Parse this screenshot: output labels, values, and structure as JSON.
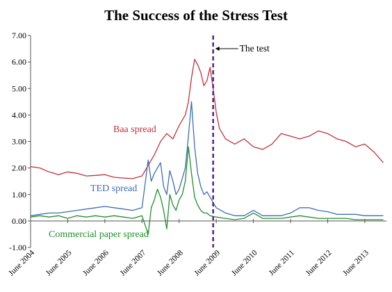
{
  "chart_data": {
    "type": "line",
    "title": "The Success of the Stress Test",
    "xlabel": "",
    "ylabel": "",
    "ylim": [
      -1.0,
      7.0
    ],
    "yticks": [
      "-1.00",
      "0.00",
      "1.00",
      "2.00",
      "3.00",
      "4.00",
      "5.00",
      "6.00",
      "7.00"
    ],
    "xrange": [
      "2004-06",
      "2014-01"
    ],
    "xticks": [
      "June 2004",
      "June 2005",
      "June 2006",
      "June 2007",
      "June 2008",
      "June 2009",
      "June 2010",
      "June 2011",
      "June 2012",
      "June 2013"
    ],
    "grid": false,
    "legend": "inline labels",
    "annotation": {
      "label": "The test",
      "x": "2009-05"
    },
    "colors": {
      "baa": "#c0323a",
      "ted": "#3d6db5",
      "cp": "#1f8f2a",
      "test_line": "#5b2a86"
    },
    "series": [
      {
        "name": "Baa spread",
        "x": [
          "2004-06",
          "2004-09",
          "2004-12",
          "2005-03",
          "2005-06",
          "2005-09",
          "2005-12",
          "2006-03",
          "2006-06",
          "2006-09",
          "2006-12",
          "2007-03",
          "2007-06",
          "2007-08",
          "2007-10",
          "2007-12",
          "2008-02",
          "2008-04",
          "2008-06",
          "2008-08",
          "2008-09",
          "2008-10",
          "2008-11",
          "2008-12",
          "2009-01",
          "2009-02",
          "2009-03",
          "2009-04",
          "2009-05",
          "2009-06",
          "2009-07",
          "2009-09",
          "2009-12",
          "2010-03",
          "2010-06",
          "2010-09",
          "2010-12",
          "2011-03",
          "2011-06",
          "2011-09",
          "2011-12",
          "2012-03",
          "2012-06",
          "2012-09",
          "2012-12",
          "2013-03",
          "2013-06",
          "2013-09",
          "2013-12"
        ],
        "y": [
          2.05,
          2.0,
          1.85,
          1.75,
          1.85,
          1.8,
          1.7,
          1.72,
          1.75,
          1.65,
          1.62,
          1.6,
          1.7,
          2.1,
          2.5,
          3.0,
          3.3,
          3.1,
          3.6,
          4.0,
          4.5,
          5.4,
          6.1,
          5.9,
          5.6,
          5.1,
          5.3,
          5.8,
          5.0,
          4.1,
          3.5,
          3.1,
          2.9,
          3.1,
          2.8,
          2.7,
          2.9,
          3.3,
          3.2,
          3.1,
          3.2,
          3.4,
          3.3,
          3.1,
          3.0,
          2.8,
          2.9,
          2.6,
          2.2
        ]
      },
      {
        "name": "TED spread",
        "x": [
          "2004-06",
          "2004-09",
          "2004-12",
          "2005-03",
          "2005-06",
          "2005-09",
          "2005-12",
          "2006-03",
          "2006-06",
          "2006-09",
          "2006-12",
          "2007-03",
          "2007-06",
          "2007-08",
          "2007-09",
          "2007-10",
          "2007-11",
          "2007-12",
          "2008-01",
          "2008-02",
          "2008-03",
          "2008-04",
          "2008-05",
          "2008-06",
          "2008-07",
          "2008-08",
          "2008-09",
          "2008-10",
          "2008-11",
          "2008-12",
          "2009-01",
          "2009-02",
          "2009-03",
          "2009-04",
          "2009-06",
          "2009-09",
          "2009-12",
          "2010-03",
          "2010-06",
          "2010-09",
          "2010-12",
          "2011-03",
          "2011-06",
          "2011-09",
          "2011-12",
          "2012-03",
          "2012-06",
          "2012-09",
          "2012-12",
          "2013-03",
          "2013-06",
          "2013-09",
          "2013-12"
        ],
        "y": [
          0.2,
          0.25,
          0.3,
          0.3,
          0.35,
          0.4,
          0.45,
          0.5,
          0.55,
          0.5,
          0.45,
          0.4,
          0.5,
          2.3,
          1.5,
          1.8,
          2.0,
          2.2,
          1.3,
          1.0,
          1.9,
          1.5,
          1.0,
          1.2,
          1.6,
          2.0,
          3.2,
          4.5,
          2.8,
          1.8,
          1.3,
          1.0,
          1.1,
          0.9,
          0.5,
          0.3,
          0.2,
          0.2,
          0.4,
          0.2,
          0.2,
          0.2,
          0.3,
          0.5,
          0.5,
          0.4,
          0.35,
          0.25,
          0.25,
          0.25,
          0.2,
          0.2,
          0.2
        ]
      },
      {
        "name": "Commercial paper spread",
        "x": [
          "2004-06",
          "2004-09",
          "2004-12",
          "2005-03",
          "2005-06",
          "2005-09",
          "2005-12",
          "2006-03",
          "2006-06",
          "2006-09",
          "2006-12",
          "2007-03",
          "2007-06",
          "2007-08",
          "2007-09",
          "2007-10",
          "2007-11",
          "2007-12",
          "2008-01",
          "2008-02",
          "2008-03",
          "2008-04",
          "2008-05",
          "2008-06",
          "2008-07",
          "2008-08",
          "2008-09",
          "2008-10",
          "2008-11",
          "2008-12",
          "2009-01",
          "2009-02",
          "2009-03",
          "2009-04",
          "2009-06",
          "2009-09",
          "2009-12",
          "2010-03",
          "2010-06",
          "2010-09",
          "2010-12",
          "2011-03",
          "2011-06",
          "2011-09",
          "2011-12",
          "2012-03",
          "2012-06",
          "2012-09",
          "2012-12",
          "2013-03",
          "2013-06",
          "2013-09",
          "2013-12"
        ],
        "y": [
          0.15,
          0.2,
          0.15,
          0.2,
          0.1,
          0.2,
          0.15,
          0.2,
          0.15,
          0.2,
          0.15,
          0.1,
          0.2,
          -0.5,
          0.5,
          0.8,
          1.2,
          0.9,
          0.4,
          -0.3,
          1.0,
          0.6,
          0.4,
          0.8,
          1.0,
          1.5,
          2.8,
          1.8,
          0.9,
          0.6,
          0.4,
          0.3,
          0.3,
          0.2,
          0.15,
          0.1,
          0.05,
          0.1,
          0.3,
          0.1,
          0.1,
          0.1,
          0.15,
          0.2,
          0.15,
          0.1,
          0.1,
          0.1,
          0.1,
          0.05,
          0.05,
          0.05,
          0.05
        ]
      }
    ]
  }
}
